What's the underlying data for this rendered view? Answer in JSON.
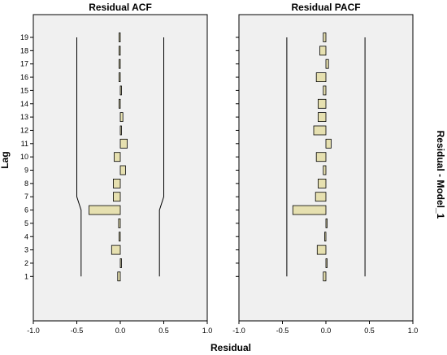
{
  "chart_data": {
    "type": "bar",
    "orientation": "horizontal",
    "xlabel": "Residual",
    "ylabel": "Lag",
    "side_label": "Residual - Model_1",
    "xlim": [
      -1.0,
      1.0
    ],
    "x_ticks": [
      "-1.0",
      "-0.5",
      "0.0",
      "0.5",
      "1.0"
    ],
    "x_tick_values": [
      -1.0,
      -0.5,
      0.0,
      0.5,
      1.0
    ],
    "lags": [
      1,
      2,
      3,
      4,
      5,
      6,
      7,
      8,
      9,
      10,
      11,
      12,
      13,
      14,
      15,
      16,
      17,
      18,
      19
    ],
    "lag_labels": [
      "1",
      "2",
      "3",
      "4",
      "5",
      "6",
      "7",
      "8",
      "9",
      "10",
      "11",
      "12",
      "13",
      "14",
      "15",
      "16",
      "17",
      "18",
      "19"
    ],
    "bar_color": "#e6e0b0",
    "panel_color": "#f0f0f0",
    "panels": [
      {
        "title": "Residual ACF",
        "values": [
          -0.03,
          0.01,
          -0.1,
          -0.01,
          -0.02,
          -0.36,
          -0.08,
          -0.08,
          0.06,
          -0.07,
          0.08,
          0.01,
          0.03,
          -0.01,
          0.0,
          -0.01,
          -0.01,
          -0.01,
          -0.01
        ],
        "upper_conf": [
          0.45,
          0.45,
          0.45,
          0.45,
          0.45,
          0.45,
          0.5,
          0.5,
          0.5,
          0.5,
          0.5,
          0.5,
          0.5,
          0.5,
          0.5,
          0.5,
          0.5,
          0.5,
          0.5
        ],
        "lower_conf": [
          -0.45,
          -0.45,
          -0.45,
          -0.45,
          -0.45,
          -0.45,
          -0.5,
          -0.5,
          -0.5,
          -0.5,
          -0.5,
          -0.5,
          -0.5,
          -0.5,
          -0.5,
          -0.5,
          -0.5,
          -0.5,
          -0.5
        ]
      },
      {
        "title": "Residual PACF",
        "values": [
          -0.03,
          0.01,
          -0.1,
          -0.01,
          0.01,
          -0.38,
          -0.12,
          -0.09,
          -0.03,
          -0.11,
          0.06,
          -0.14,
          -0.09,
          -0.09,
          -0.03,
          -0.11,
          0.03,
          -0.07,
          -0.03
        ],
        "upper_conf": [
          0.45,
          0.45,
          0.45,
          0.45,
          0.45,
          0.45,
          0.45,
          0.45,
          0.45,
          0.45,
          0.45,
          0.45,
          0.45,
          0.45,
          0.45,
          0.45,
          0.45,
          0.45,
          0.45
        ],
        "lower_conf": [
          -0.45,
          -0.45,
          -0.45,
          -0.45,
          -0.45,
          -0.45,
          -0.45,
          -0.45,
          -0.45,
          -0.45,
          -0.45,
          -0.45,
          -0.45,
          -0.45,
          -0.45,
          -0.45,
          -0.45,
          -0.45,
          -0.45
        ]
      }
    ]
  }
}
